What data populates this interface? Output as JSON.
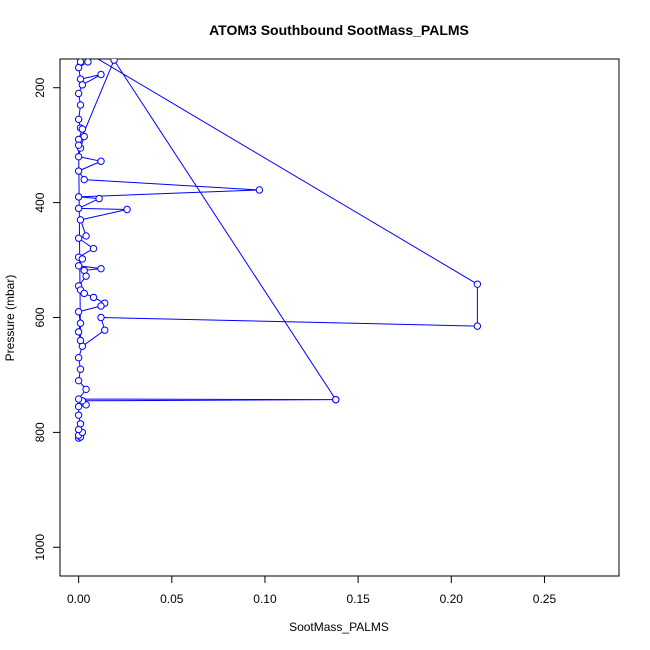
{
  "chart_data": {
    "type": "line",
    "title": "ATOM3 Southbound SootMass_PALMS",
    "xlabel": "SootMass_PALMS",
    "ylabel": "Pressure (mbar)",
    "xlim": [
      -0.01,
      0.29
    ],
    "ylim": [
      1050,
      150
    ],
    "y_reversed": true,
    "grid": false,
    "legend": "none",
    "x_ticks": [
      0.0,
      0.05,
      0.1,
      0.15,
      0.2,
      0.25
    ],
    "x_tick_labels": [
      "0.00",
      "0.05",
      "0.10",
      "0.15",
      "0.20",
      "0.25"
    ],
    "y_ticks": [
      200,
      400,
      600,
      800,
      1000
    ],
    "y_tick_labels": [
      "200",
      "400",
      "600",
      "800",
      "1000"
    ],
    "series": [
      {
        "color": "#0000ff",
        "marker": "open-circle",
        "points": [
          [
            0.0,
            810
          ],
          [
            0.001,
            808
          ],
          [
            0.0,
            805
          ],
          [
            0.002,
            800
          ],
          [
            0.0,
            795
          ],
          [
            0.001,
            785
          ],
          [
            0.0,
            770
          ],
          [
            0.0,
            755
          ],
          [
            0.004,
            752
          ],
          [
            0.002,
            745
          ],
          [
            0.138,
            743
          ],
          [
            0.0,
            742
          ],
          [
            0.004,
            725
          ],
          [
            0.0,
            710
          ],
          [
            0.001,
            690
          ],
          [
            0.0,
            670
          ],
          [
            0.002,
            650
          ],
          [
            0.014,
            622
          ],
          [
            0.012,
            600
          ],
          [
            0.214,
            615
          ],
          [
            0.214,
            542
          ],
          [
            0.0,
            130
          ],
          [
            0.002,
            140
          ],
          [
            0.001,
            155
          ],
          [
            0.005,
            155
          ],
          [
            0.0,
            165
          ],
          [
            0.001,
            185
          ],
          [
            0.012,
            177
          ],
          [
            0.002,
            195
          ],
          [
            0.0,
            210
          ],
          [
            0.001,
            230
          ],
          [
            0.0,
            255
          ],
          [
            0.001,
            270
          ],
          [
            0.002,
            272
          ],
          [
            0.0,
            290
          ],
          [
            0.003,
            285
          ],
          [
            0.001,
            305
          ],
          [
            0.0,
            320
          ],
          [
            0.012,
            328
          ],
          [
            0.0,
            345
          ],
          [
            0.003,
            360
          ],
          [
            0.097,
            378
          ],
          [
            0.0,
            390
          ],
          [
            0.011,
            393
          ],
          [
            0.0,
            410
          ],
          [
            0.026,
            412
          ],
          [
            0.001,
            430
          ],
          [
            0.004,
            458
          ],
          [
            0.0,
            462
          ],
          [
            0.008,
            480
          ],
          [
            0.0,
            495
          ],
          [
            0.002,
            498
          ],
          [
            0.0,
            510
          ],
          [
            0.012,
            515
          ],
          [
            0.003,
            518
          ],
          [
            0.004,
            528
          ],
          [
            0.0,
            545
          ],
          [
            0.001,
            552
          ],
          [
            0.003,
            558
          ],
          [
            0.008,
            565
          ],
          [
            0.014,
            575
          ],
          [
            0.012,
            580
          ],
          [
            0.0,
            590
          ],
          [
            0.001,
            610
          ],
          [
            0.0,
            625
          ],
          [
            0.001,
            640
          ],
          [
            0.0,
            300
          ],
          [
            0.019,
            152
          ],
          [
            0.138,
            743
          ]
        ]
      }
    ]
  }
}
